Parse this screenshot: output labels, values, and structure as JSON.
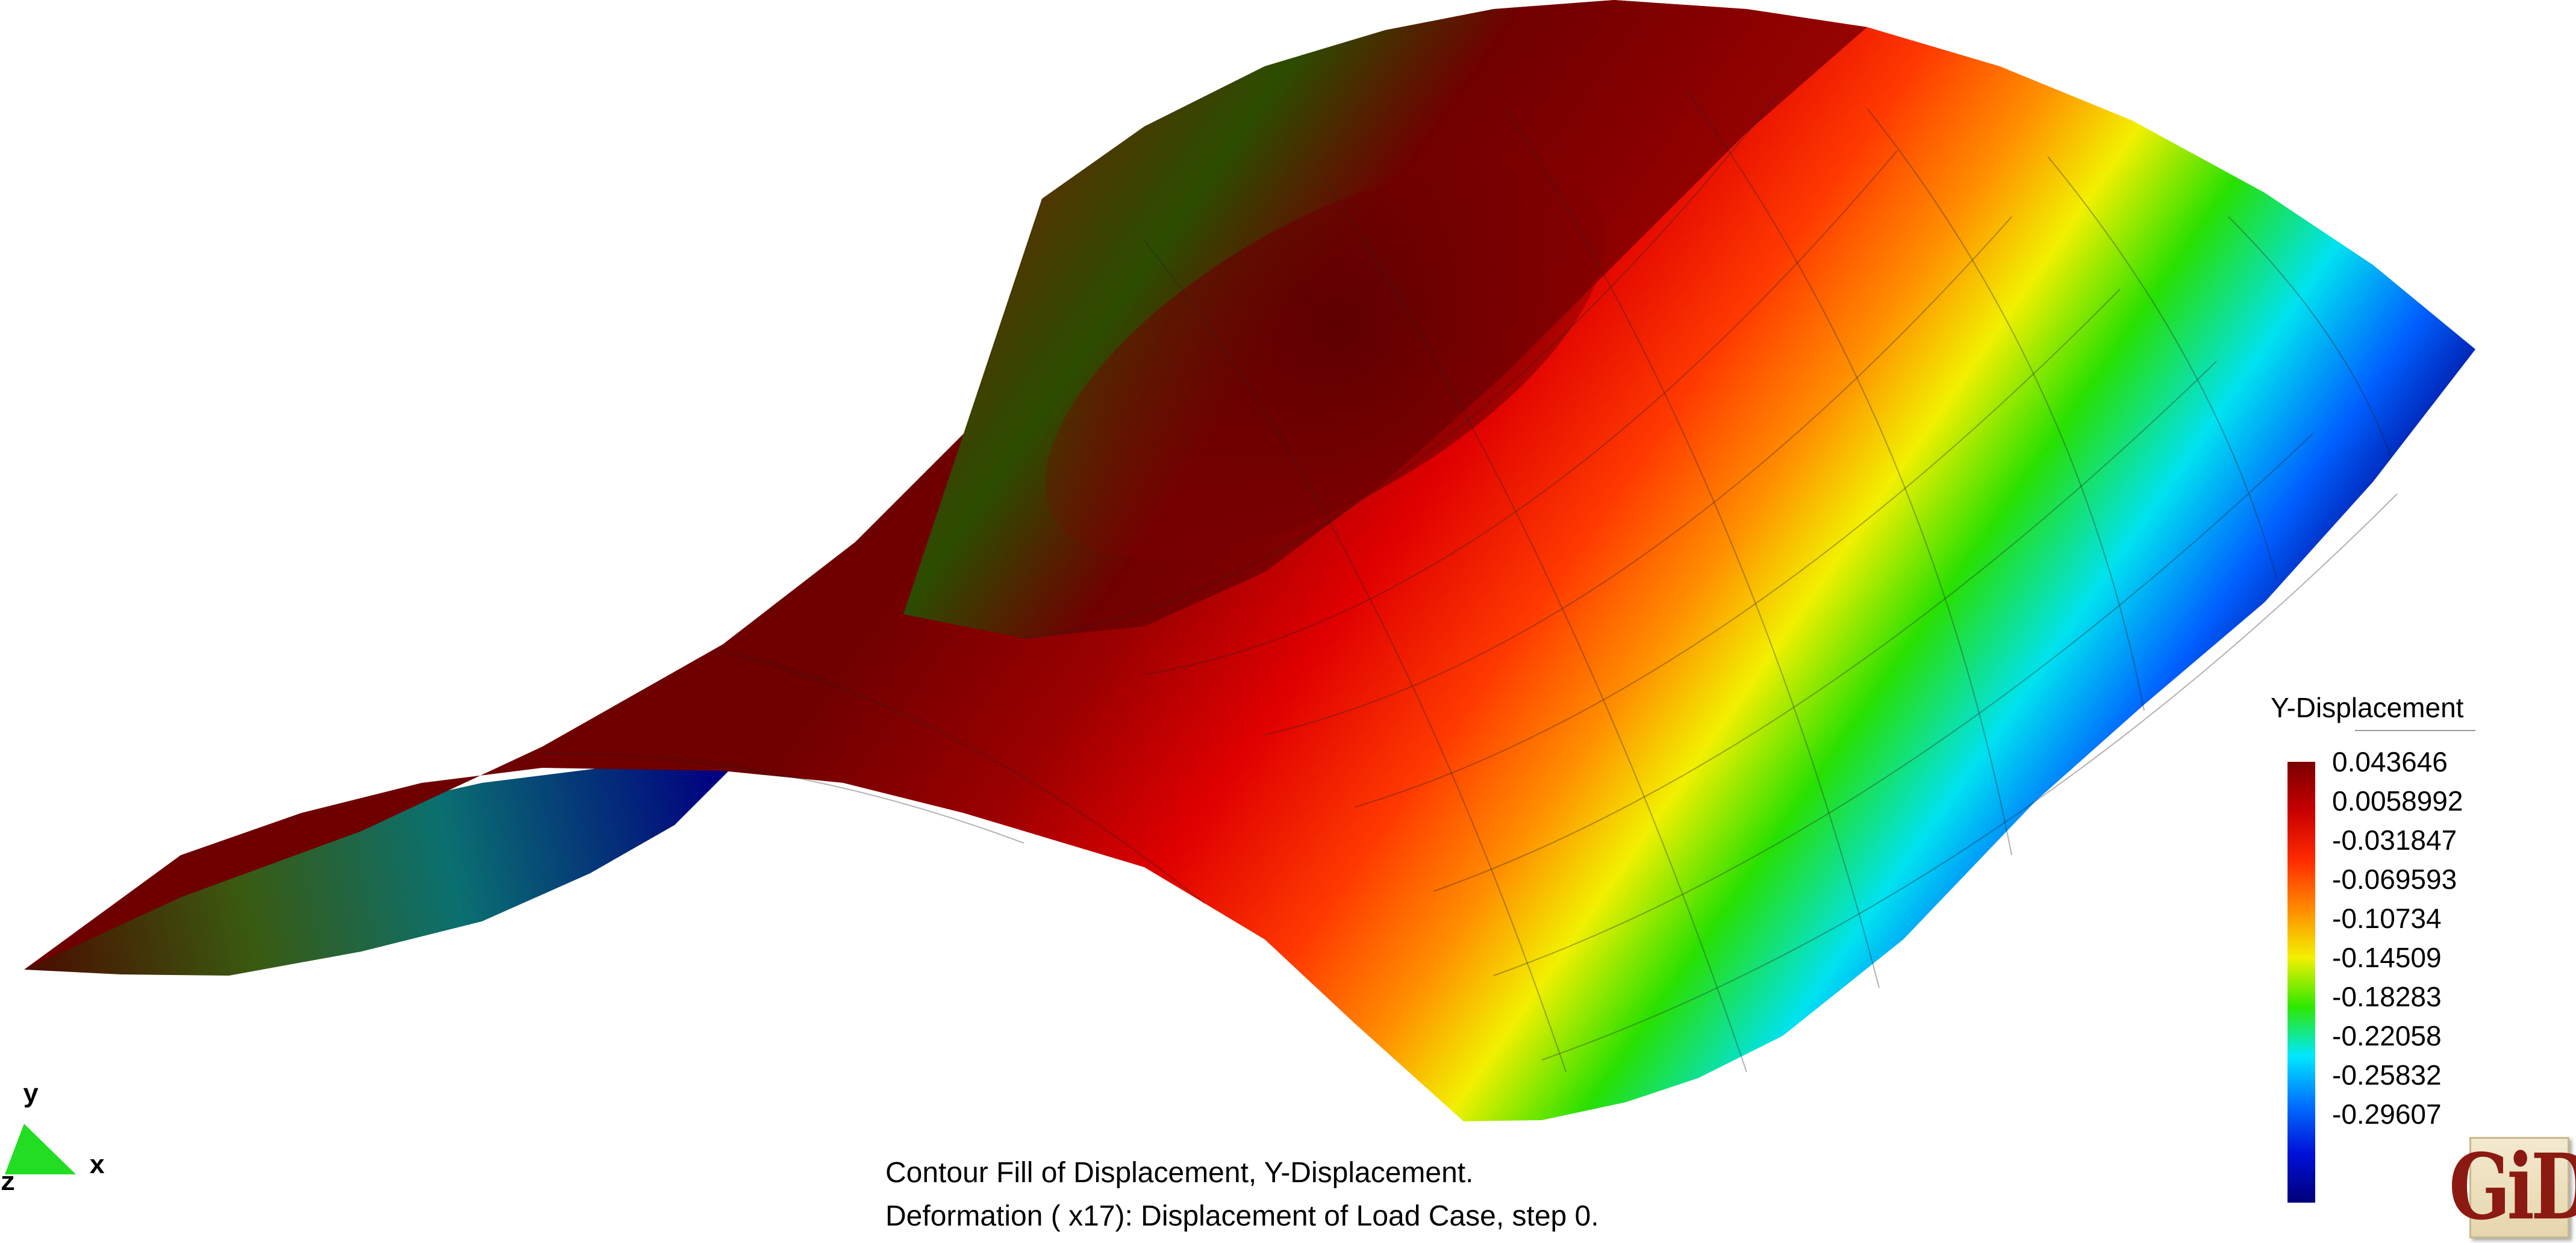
{
  "legend": {
    "title": "Y-Displacement",
    "values": [
      "0.043646",
      "0.0058992",
      "-0.031847",
      "-0.069593",
      "-0.10734",
      "-0.14509",
      "-0.18283",
      "-0.22058",
      "-0.25832",
      "-0.29607"
    ],
    "colors": [
      "#7a0000",
      "#c80000",
      "#ff2a00",
      "#ff8a00",
      "#f4f000",
      "#2ee800",
      "#00e8ff",
      "#0070ff",
      "#0010d8",
      "#00007a"
    ]
  },
  "caption": {
    "line1": "Contour Fill of Displacement, Y-Displacement.",
    "line2": "Deformation ( x17): Displacement of Load Case, step 0."
  },
  "axes": {
    "y_label": "y",
    "x_label": "x",
    "z_label": "z",
    "triad_color": "#22dd22"
  },
  "logo": {
    "text": "GiD"
  }
}
